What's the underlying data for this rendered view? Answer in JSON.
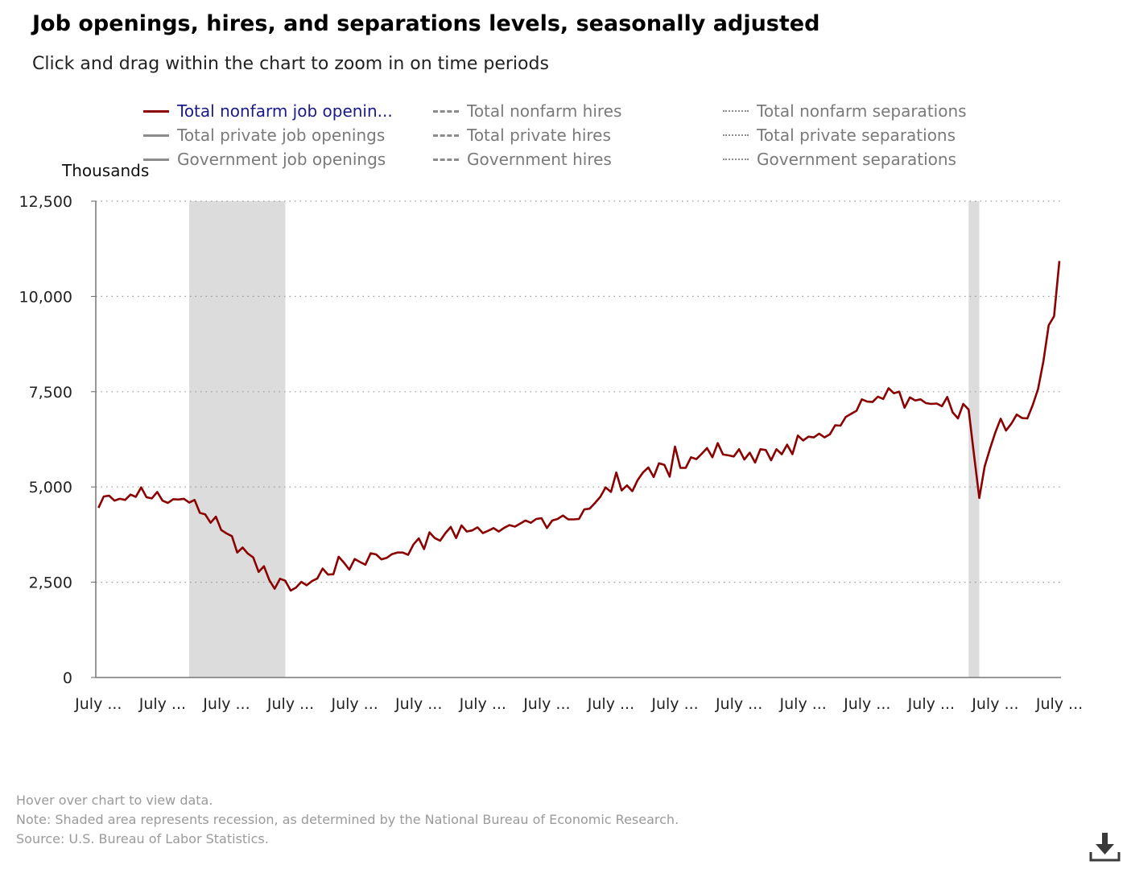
{
  "title": "Job openings, hires, and separations levels, seasonally adjusted",
  "subtitle": "Click and drag within the chart to zoom in on time periods",
  "legend": [
    {
      "label": "Total nonfarm job openin...",
      "style": "solid",
      "color": "#8b0000",
      "active": true
    },
    {
      "label": "Total private job openings",
      "style": "solid",
      "color": "#8c8c8c",
      "active": false
    },
    {
      "label": "Government job openings",
      "style": "solid",
      "color": "#8c8c8c",
      "active": false
    },
    {
      "label": "Total nonfarm hires",
      "style": "dashed",
      "color": "#8c8c8c",
      "active": false
    },
    {
      "label": "Total private hires",
      "style": "dashed",
      "color": "#8c8c8c",
      "active": false
    },
    {
      "label": "Government hires",
      "style": "dashed",
      "color": "#8c8c8c",
      "active": false
    },
    {
      "label": "Total nonfarm separations",
      "style": "dotted",
      "color": "#8c8c8c",
      "active": false
    },
    {
      "label": "Total private separations",
      "style": "dotted",
      "color": "#8c8c8c",
      "active": false
    },
    {
      "label": "Government separations",
      "style": "dotted",
      "color": "#8c8c8c",
      "active": false
    }
  ],
  "footnotes": {
    "hover": "Hover over chart to view data.",
    "note": "Note: Shaded area represents recession, as determined by the National Bureau of Economic Research.",
    "source": "Source: U.S. Bureau of Labor Statistics."
  },
  "chart_data": {
    "type": "line",
    "title": "Job openings, hires, and separations levels, seasonally adjusted",
    "ylabel": "Thousands",
    "xlabel": "",
    "ylim": [
      0,
      12500
    ],
    "yticks": [
      0,
      2500,
      5000,
      7500,
      10000,
      12500
    ],
    "ytick_labels": [
      "0",
      "2,500",
      "5,000",
      "7,500",
      "10,000",
      "12,500"
    ],
    "xtick_labels": [
      "July ...",
      "July ...",
      "July ...",
      "July ...",
      "July ...",
      "July ...",
      "July ...",
      "July ...",
      "July ...",
      "July ...",
      "July ...",
      "July ...",
      "July ...",
      "July ...",
      "July ...",
      "July ..."
    ],
    "grid": true,
    "line_color": "#8b0000",
    "recession_color": "#dcdcdc",
    "recessions": [
      [
        "2007-12",
        "2009-06"
      ],
      [
        "2020-02",
        "2020-04"
      ]
    ],
    "series": [
      {
        "name": "Total nonfarm job openin...",
        "x": [
          "2006-07",
          "2006-08",
          "2006-09",
          "2006-10",
          "2006-11",
          "2006-12",
          "2007-01",
          "2007-02",
          "2007-03",
          "2007-04",
          "2007-05",
          "2007-06",
          "2007-07",
          "2007-08",
          "2007-09",
          "2007-10",
          "2007-11",
          "2007-12",
          "2008-01",
          "2008-02",
          "2008-03",
          "2008-04",
          "2008-05",
          "2008-06",
          "2008-07",
          "2008-08",
          "2008-09",
          "2008-10",
          "2008-11",
          "2008-12",
          "2009-01",
          "2009-02",
          "2009-03",
          "2009-04",
          "2009-05",
          "2009-06",
          "2009-07",
          "2009-08",
          "2009-09",
          "2009-10",
          "2009-11",
          "2009-12",
          "2010-01",
          "2010-02",
          "2010-03",
          "2010-04",
          "2010-05",
          "2010-06",
          "2010-07",
          "2010-08",
          "2010-09",
          "2010-10",
          "2010-11",
          "2010-12",
          "2011-01",
          "2011-02",
          "2011-03",
          "2011-04",
          "2011-05",
          "2011-06",
          "2011-07",
          "2011-08",
          "2011-09",
          "2011-10",
          "2011-11",
          "2011-12",
          "2012-01",
          "2012-02",
          "2012-03",
          "2012-04",
          "2012-05",
          "2012-06",
          "2012-07",
          "2012-08",
          "2012-09",
          "2012-10",
          "2012-11",
          "2012-12",
          "2013-01",
          "2013-02",
          "2013-03",
          "2013-04",
          "2013-05",
          "2013-06",
          "2013-07",
          "2013-08",
          "2013-09",
          "2013-10",
          "2013-11",
          "2013-12",
          "2014-01",
          "2014-02",
          "2014-03",
          "2014-04",
          "2014-05",
          "2014-06",
          "2014-07",
          "2014-08",
          "2014-09",
          "2014-10",
          "2014-11",
          "2014-12",
          "2015-01",
          "2015-02",
          "2015-03",
          "2015-04",
          "2015-05",
          "2015-06",
          "2015-07",
          "2015-08",
          "2015-09",
          "2015-10",
          "2015-11",
          "2015-12",
          "2016-01",
          "2016-02",
          "2016-03",
          "2016-04",
          "2016-05",
          "2016-06",
          "2016-07",
          "2016-08",
          "2016-09",
          "2016-10",
          "2016-11",
          "2016-12",
          "2017-01",
          "2017-02",
          "2017-03",
          "2017-04",
          "2017-05",
          "2017-06",
          "2017-07",
          "2017-08",
          "2017-09",
          "2017-10",
          "2017-11",
          "2017-12",
          "2018-01",
          "2018-02",
          "2018-03",
          "2018-04",
          "2018-05",
          "2018-06",
          "2018-07",
          "2018-08",
          "2018-09",
          "2018-10",
          "2018-11",
          "2018-12",
          "2019-01",
          "2019-02",
          "2019-03",
          "2019-04",
          "2019-05",
          "2019-06",
          "2019-07",
          "2019-08",
          "2019-09",
          "2019-10",
          "2019-11",
          "2019-12",
          "2020-01",
          "2020-02",
          "2020-03",
          "2020-04",
          "2020-05",
          "2020-06",
          "2020-07",
          "2020-08",
          "2020-09",
          "2020-10",
          "2020-11",
          "2020-12",
          "2021-01",
          "2021-02",
          "2021-03",
          "2021-04",
          "2021-05",
          "2021-06",
          "2021-07"
        ],
        "values": [
          4450,
          4750,
          4770,
          4640,
          4690,
          4660,
          4800,
          4740,
          4990,
          4730,
          4700,
          4870,
          4640,
          4580,
          4680,
          4670,
          4690,
          4590,
          4660,
          4320,
          4280,
          4060,
          4220,
          3870,
          3780,
          3710,
          3280,
          3410,
          3250,
          3150,
          2770,
          2920,
          2560,
          2330,
          2590,
          2540,
          2280,
          2360,
          2510,
          2420,
          2530,
          2600,
          2860,
          2700,
          2710,
          3170,
          3010,
          2830,
          3110,
          3030,
          2960,
          3260,
          3230,
          3100,
          3140,
          3240,
          3280,
          3280,
          3220,
          3490,
          3650,
          3370,
          3810,
          3660,
          3590,
          3790,
          3950,
          3660,
          3990,
          3830,
          3860,
          3940,
          3790,
          3850,
          3920,
          3830,
          3930,
          4000,
          3960,
          4040,
          4120,
          4060,
          4160,
          4180,
          3920,
          4120,
          4160,
          4250,
          4150,
          4150,
          4160,
          4410,
          4430,
          4580,
          4740,
          4990,
          4870,
          5380,
          4910,
          5040,
          4890,
          5180,
          5380,
          5510,
          5260,
          5620,
          5580,
          5270,
          6060,
          5500,
          5500,
          5780,
          5730,
          5870,
          6020,
          5780,
          6150,
          5850,
          5830,
          5800,
          5990,
          5720,
          5900,
          5640,
          5990,
          5970,
          5700,
          5990,
          5860,
          6110,
          5860,
          6350,
          6220,
          6320,
          6300,
          6400,
          6300,
          6380,
          6620,
          6610,
          6840,
          6920,
          7000,
          7300,
          7240,
          7230,
          7370,
          7310,
          7590,
          7460,
          7500,
          7080,
          7350,
          7270,
          7300,
          7200,
          7180,
          7190,
          7120,
          7360,
          6960,
          6800,
          7180,
          7030,
          5850,
          4710,
          5540,
          6000,
          6430,
          6790,
          6480,
          6660,
          6900,
          6810,
          6800,
          7150,
          7570,
          8290,
          9240,
          9480,
          10930
        ]
      }
    ]
  }
}
